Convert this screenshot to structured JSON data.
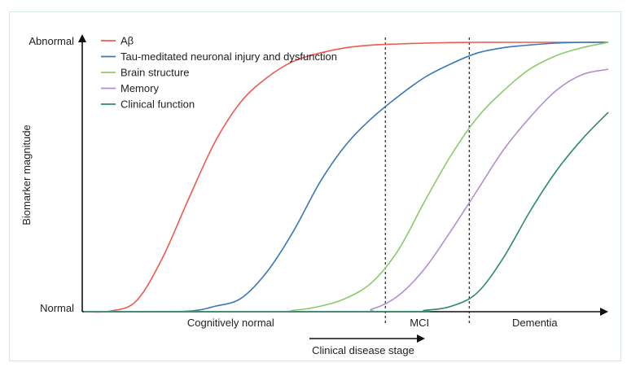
{
  "chart_data": {
    "type": "line",
    "title": "",
    "ylabel": "Biomarker magnitude",
    "xlabel": "Clinical disease stage",
    "y_ticks": [
      "Normal",
      "Abnormal"
    ],
    "ylim": [
      0,
      1
    ],
    "xlim": [
      0,
      1
    ],
    "stages": [
      {
        "label": "Cognitively normal",
        "center": 0.28
      },
      {
        "label": "MCI",
        "center": 0.64
      },
      {
        "label": "Dementia",
        "center": 0.86
      }
    ],
    "stage_boundaries": [
      0.575,
      0.735
    ],
    "legend_position": "top-left",
    "series": [
      {
        "name": "Aβ",
        "color": "#ee5a50",
        "x": [
          0,
          0.05,
          0.1,
          0.15,
          0.2,
          0.25,
          0.3,
          0.35,
          0.4,
          0.45,
          0.5,
          0.55,
          0.6,
          0.65,
          0.7,
          0.75,
          0.8,
          0.85,
          0.9,
          0.95,
          1.0
        ],
        "y": [
          0,
          0.002,
          0.04,
          0.2,
          0.42,
          0.63,
          0.78,
          0.87,
          0.93,
          0.96,
          0.98,
          0.99,
          0.994,
          0.997,
          0.999,
          1,
          1,
          1,
          1,
          1,
          1
        ]
      },
      {
        "name": "Tau-meditated neuronal injury and dysfunction",
        "color": "#3a78b8",
        "x": [
          0,
          0.1,
          0.2,
          0.25,
          0.3,
          0.35,
          0.4,
          0.45,
          0.5,
          0.55,
          0.6,
          0.65,
          0.7,
          0.75,
          0.8,
          0.85,
          0.9,
          0.95,
          1.0
        ],
        "y": [
          0,
          0,
          0.002,
          0.02,
          0.05,
          0.15,
          0.3,
          0.48,
          0.62,
          0.72,
          0.8,
          0.87,
          0.92,
          0.96,
          0.98,
          0.99,
          0.997,
          1,
          1
        ]
      },
      {
        "name": "Brain structure",
        "color": "#8dc96a",
        "x": [
          0,
          0.35,
          0.4,
          0.45,
          0.5,
          0.55,
          0.6,
          0.65,
          0.7,
          0.75,
          0.8,
          0.85,
          0.9,
          0.95,
          1.0
        ],
        "y": [
          0,
          0,
          0.005,
          0.02,
          0.05,
          0.11,
          0.23,
          0.41,
          0.58,
          0.72,
          0.82,
          0.9,
          0.95,
          0.98,
          1.0
        ]
      },
      {
        "name": "Memory",
        "color": "#b48ed0",
        "x": [
          0,
          0.5,
          0.55,
          0.6,
          0.65,
          0.7,
          0.75,
          0.8,
          0.85,
          0.9,
          0.95,
          1.0
        ],
        "y": [
          0,
          0,
          0.01,
          0.06,
          0.16,
          0.3,
          0.45,
          0.6,
          0.72,
          0.82,
          0.88,
          0.9
        ]
      },
      {
        "name": "Clinical function",
        "color": "#2e8a6a",
        "x": [
          0,
          0.6,
          0.65,
          0.7,
          0.75,
          0.8,
          0.85,
          0.9,
          0.95,
          1.0
        ],
        "y": [
          0,
          0,
          0.005,
          0.02,
          0.07,
          0.2,
          0.37,
          0.52,
          0.64,
          0.74
        ]
      }
    ]
  }
}
